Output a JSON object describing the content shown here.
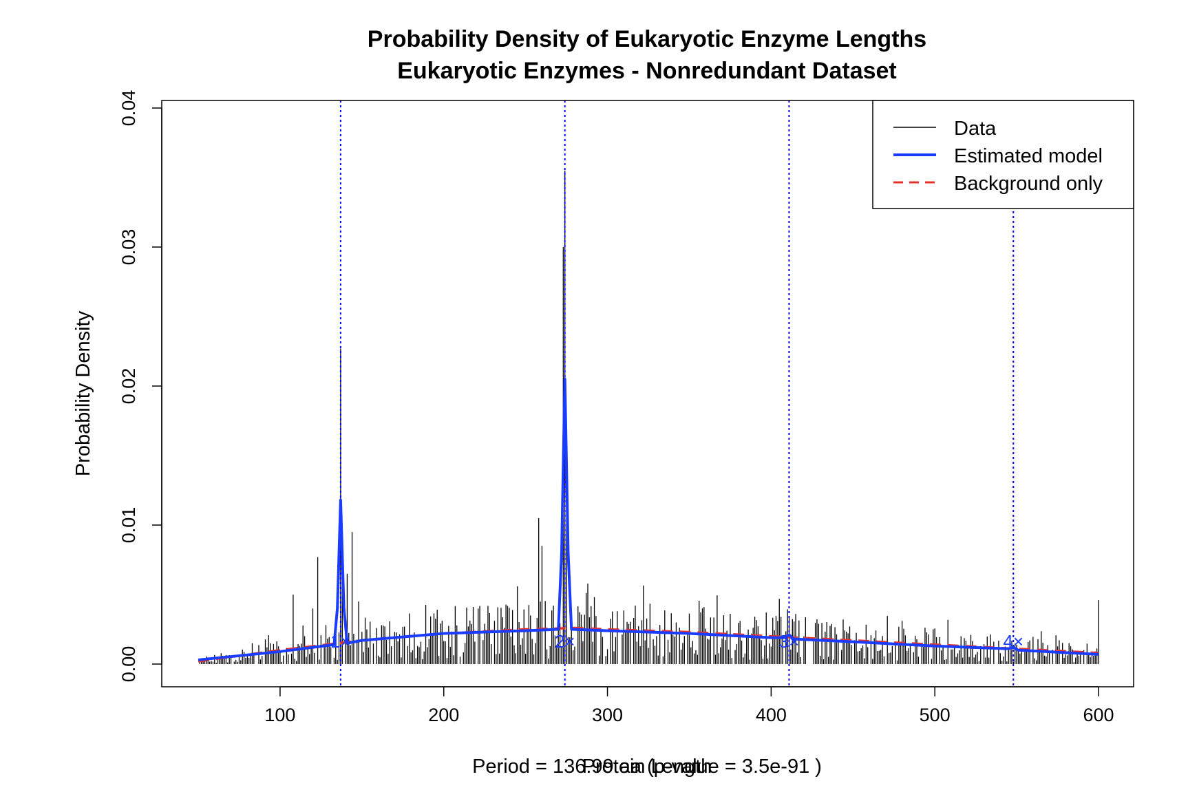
{
  "chart_data": {
    "type": "bar",
    "title": "Probability Density of Eukaryotic Enzyme Lengths",
    "subtitle": "Eukaryotic Enzymes - Nonredundant Dataset",
    "xlabel": "Protein Length",
    "ylabel": "Probability Density",
    "footnote": "Period = 136.99 aa (p-value = 3.5e-91 )",
    "xlim": [
      50,
      600
    ],
    "ylim": [
      0,
      0.04
    ],
    "x_ticks": [
      100,
      200,
      300,
      400,
      500,
      600
    ],
    "y_ticks": [
      0.0,
      0.01,
      0.02,
      0.03,
      0.04
    ],
    "x_tick_labels": [
      "100",
      "200",
      "300",
      "400",
      "500",
      "600"
    ],
    "y_tick_labels": [
      "0.00",
      "0.01",
      "0.02",
      "0.03",
      "0.04"
    ],
    "grid": false,
    "legend_position": "top-right",
    "colors": {
      "data": "#000000",
      "model": "#1a3cff",
      "background": "#e8332a",
      "period_lines": "#0000ff"
    },
    "legend": [
      {
        "label": "Data",
        "style": "thin-solid",
        "color": "#000000"
      },
      {
        "label": "Estimated model",
        "style": "thick-solid",
        "color": "#1a3cff"
      },
      {
        "label": "Background only",
        "style": "dashed",
        "color": "#e8332a"
      }
    ],
    "period_lines_x": [
      136.99,
      273.98,
      410.97,
      547.96
    ],
    "period_labels": [
      "1×",
      "2×",
      "3×",
      "4×"
    ],
    "data_peaks": [
      {
        "x": 137,
        "y": 0.0227
      },
      {
        "x": 274,
        "y": 0.0355
      },
      {
        "x": 273,
        "y": 0.03
      },
      {
        "x": 275,
        "y": 0.015
      },
      {
        "x": 258,
        "y": 0.0105
      },
      {
        "x": 260,
        "y": 0.0085
      },
      {
        "x": 123,
        "y": 0.0077
      },
      {
        "x": 144,
        "y": 0.0095
      },
      {
        "x": 141,
        "y": 0.0065
      },
      {
        "x": 138,
        "y": 0.006
      },
      {
        "x": 148,
        "y": 0.0045
      },
      {
        "x": 108,
        "y": 0.005
      },
      {
        "x": 120,
        "y": 0.004
      },
      {
        "x": 600,
        "y": 0.0046
      }
    ],
    "background_model": {
      "x": [
        50,
        100,
        150,
        200,
        250,
        280,
        300,
        350,
        400,
        450,
        500,
        550,
        600
      ],
      "y": [
        0.0002,
        0.001,
        0.0017,
        0.0022,
        0.0025,
        0.0026,
        0.0025,
        0.0023,
        0.002,
        0.0017,
        0.0014,
        0.0011,
        0.0008
      ]
    },
    "estimated_model": {
      "x": [
        50,
        100,
        133,
        135,
        136.99,
        139,
        141,
        150,
        200,
        250,
        270,
        272,
        273.98,
        276,
        278,
        300,
        350,
        400,
        408,
        410.97,
        414,
        450,
        500,
        545,
        547.96,
        551,
        600
      ],
      "y": [
        0.0003,
        0.0009,
        0.0014,
        0.004,
        0.0118,
        0.004,
        0.0015,
        0.0017,
        0.0022,
        0.0024,
        0.0025,
        0.008,
        0.0205,
        0.008,
        0.0025,
        0.0024,
        0.0022,
        0.0019,
        0.0019,
        0.0021,
        0.0018,
        0.0016,
        0.0013,
        0.0011,
        0.0012,
        0.001,
        0.0007
      ]
    }
  }
}
